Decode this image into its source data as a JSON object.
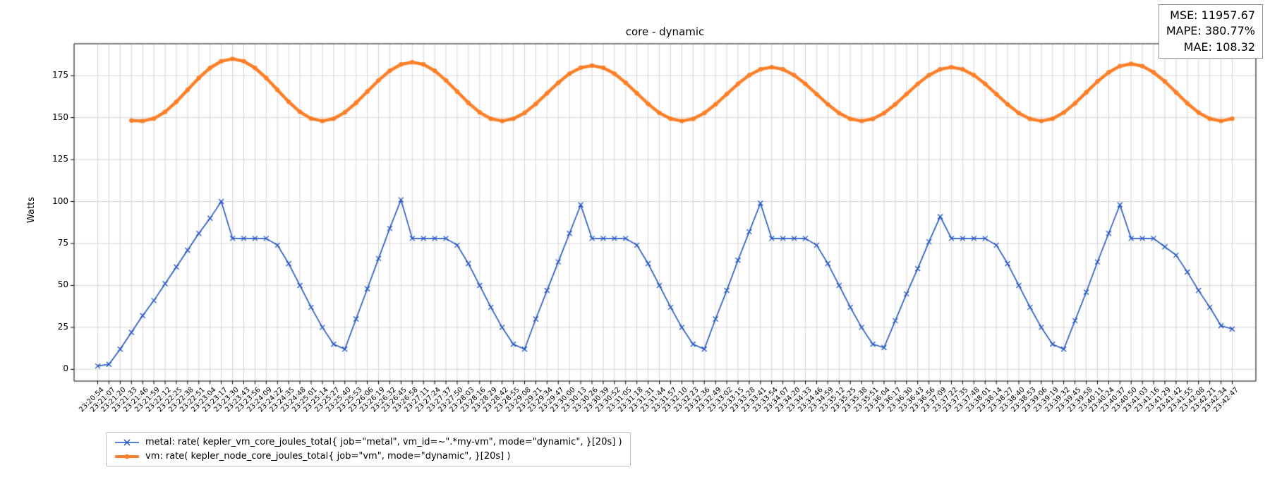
{
  "title": "core - dynamic",
  "ylabel": "Watts",
  "stats": {
    "mse": "MSE: 11957.67",
    "mape": "MAPE: 380.77%",
    "mae": "MAE: 108.32"
  },
  "legend": [
    {
      "label": "metal: rate( kepler_vm_core_joules_total{ job=\"metal\", vm_id=~\".*my-vm\", mode=\"dynamic\", }[20s] )",
      "marker": "x"
    },
    {
      "label": "vm: rate( kepler_node_core_joules_total{ job=\"vm\", mode=\"dynamic\", }[20s] )",
      "marker": "circle"
    }
  ],
  "chart_data": {
    "type": "line",
    "title": "core - dynamic",
    "xlabel": "",
    "ylabel": "Watts",
    "grid": true,
    "legend_position": "lower-left-outside",
    "ylim": [
      -7,
      194
    ],
    "yticks": [
      0,
      25,
      50,
      75,
      100,
      125,
      150,
      175
    ],
    "x": [
      "23:20:54",
      "23:21:07",
      "23:21:20",
      "23:21:33",
      "23:21:46",
      "23:21:59",
      "23:22:12",
      "23:22:25",
      "23:22:38",
      "23:22:51",
      "23:23:04",
      "23:23:17",
      "23:23:30",
      "23:23:43",
      "23:23:56",
      "23:24:09",
      "23:24:22",
      "23:24:35",
      "23:24:48",
      "23:25:01",
      "23:25:14",
      "23:25:27",
      "23:25:40",
      "23:25:53",
      "23:26:06",
      "23:26:19",
      "23:26:32",
      "23:26:45",
      "23:26:58",
      "23:27:11",
      "23:27:24",
      "23:27:37",
      "23:27:50",
      "23:28:03",
      "23:28:16",
      "23:28:29",
      "23:28:42",
      "23:28:55",
      "23:29:08",
      "23:29:21",
      "23:29:34",
      "23:29:47",
      "23:30:00",
      "23:30:13",
      "23:30:26",
      "23:30:39",
      "23:30:52",
      "23:31:05",
      "23:31:18",
      "23:31:31",
      "23:31:44",
      "23:31:57",
      "23:32:10",
      "23:32:23",
      "23:32:36",
      "23:32:49",
      "23:33:02",
      "23:33:15",
      "23:33:28",
      "23:33:41",
      "23:33:54",
      "23:34:07",
      "23:34:20",
      "23:34:33",
      "23:34:46",
      "23:34:59",
      "23:35:12",
      "23:35:25",
      "23:35:38",
      "23:35:51",
      "23:36:04",
      "23:36:17",
      "23:36:30",
      "23:36:43",
      "23:36:56",
      "23:37:09",
      "23:37:22",
      "23:37:35",
      "23:37:48",
      "23:38:01",
      "23:38:14",
      "23:38:27",
      "23:38:40",
      "23:38:53",
      "23:39:06",
      "23:39:19",
      "23:39:32",
      "23:39:45",
      "23:39:58",
      "23:40:11",
      "23:40:24",
      "23:40:37",
      "23:40:50",
      "23:41:03",
      "23:41:16",
      "23:41:29",
      "23:41:42",
      "23:41:55",
      "23:42:08",
      "23:42:21",
      "23:42:34",
      "23:42:47"
    ],
    "series": [
      {
        "name": "metal",
        "color": "#2255c4",
        "marker": "x",
        "line_width": 1.6,
        "values": [
          2,
          3,
          12,
          22,
          32,
          41,
          51,
          61,
          71,
          81,
          90,
          100,
          78,
          78,
          78,
          78,
          74,
          63,
          50,
          37,
          25,
          15,
          12,
          30,
          48,
          66,
          84,
          101,
          78,
          78,
          78,
          78,
          74,
          63,
          50,
          37,
          25,
          15,
          12,
          30,
          47,
          64,
          81,
          98,
          78,
          78,
          78,
          78,
          74,
          63,
          50,
          37,
          25,
          15,
          12,
          30,
          47,
          65,
          82,
          99,
          78,
          78,
          78,
          78,
          74,
          63,
          50,
          37,
          25,
          15,
          13,
          29,
          45,
          60,
          76,
          91,
          78,
          78,
          78,
          78,
          74,
          63,
          50,
          37,
          25,
          15,
          12,
          29,
          46,
          64,
          81,
          98,
          78,
          78,
          78,
          73,
          68,
          58,
          47,
          37,
          26,
          24
        ]
      },
      {
        "name": "vm",
        "color": "#fd7f28",
        "marker": "circle",
        "line_width": 4.5,
        "values": [
          null,
          null,
          null,
          148.3,
          148,
          149.4,
          153.4,
          159.4,
          166.5,
          173.6,
          179.6,
          183.6,
          185,
          183.6,
          179.6,
          173.6,
          166.5,
          159.4,
          153.4,
          149.4,
          148,
          149.3,
          153.1,
          158.8,
          165.5,
          172.2,
          177.9,
          181.7,
          183,
          181.7,
          177.9,
          172.2,
          165.5,
          158.8,
          153.1,
          149.3,
          148,
          149.3,
          152.8,
          158.2,
          164.5,
          170.8,
          176.2,
          179.7,
          181,
          179.7,
          176.2,
          170.8,
          164.5,
          158.2,
          152.8,
          149.3,
          148,
          149.2,
          152.7,
          157.9,
          164,
          170.1,
          175.3,
          178.8,
          180,
          178.8,
          175.3,
          170.1,
          164,
          157.9,
          152.7,
          149.2,
          148,
          149.2,
          152.7,
          157.9,
          164,
          170.1,
          175.3,
          178.8,
          180,
          178.8,
          175.3,
          170.1,
          164,
          157.9,
          152.7,
          149.2,
          148,
          149.3,
          153.0,
          158.5,
          165,
          171.5,
          177.0,
          180.7,
          182,
          180.7,
          177.0,
          171.5,
          165,
          158.5,
          153.0,
          149.3,
          148,
          149.3
        ]
      }
    ]
  }
}
